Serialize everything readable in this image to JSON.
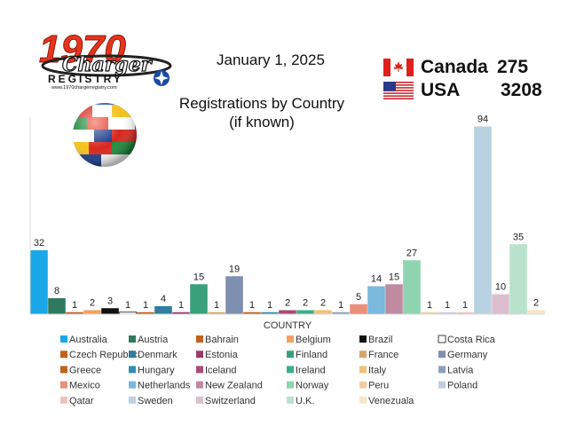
{
  "header": {
    "logo_main": "1970",
    "logo_script": "Charger",
    "logo_registry": "REGISTRY",
    "logo_url": "www.1970chargerregistry.com",
    "date": "January 1, 2025",
    "title_line1": "Registrations by Country",
    "title_line2": "(if known)"
  },
  "totals": [
    {
      "country": "Canada",
      "count": "275"
    },
    {
      "country": "USA",
      "count": "3208"
    }
  ],
  "chart_data": {
    "type": "bar",
    "title": "Registrations by Country (if known)",
    "xlabel": "COUNTRY",
    "ylabel": "",
    "ylim": [
      0,
      100
    ],
    "grid": false,
    "legend_position": "bottom",
    "categories": [
      "Australia",
      "Austria",
      "Bahrain",
      "Belgium",
      "Brazil",
      "Costa Rica",
      "Czech Republic",
      "Denmark",
      "Estonia",
      "Finland",
      "France",
      "Germany",
      "Greece",
      "Hungary",
      "Iceland",
      "Ireland",
      "Italy",
      "Latvia",
      "Mexico",
      "Netherlands",
      "New Zealand",
      "Norway",
      "Peru",
      "Poland",
      "Qatar",
      "Sweden",
      "Switzerland",
      "U.K.",
      "Venezuala"
    ],
    "values": [
      32,
      8,
      1,
      2,
      3,
      1,
      1,
      4,
      1,
      15,
      1,
      19,
      1,
      1,
      2,
      2,
      2,
      1,
      5,
      14,
      15,
      27,
      1,
      1,
      1,
      94,
      10,
      35,
      2
    ],
    "colors": [
      "#1aa7e8",
      "#2f7a5f",
      "#c0621c",
      "#f2a064",
      "#111111",
      "#ffffff",
      "#c0621c",
      "#2f7f9e",
      "#9c3a6a",
      "#3aa07a",
      "#d6a56a",
      "#7f8fb0",
      "#c0621c",
      "#2f8fb0",
      "#a84a78",
      "#3ab08a",
      "#f2c07a",
      "#8ea0bb",
      "#e8907a",
      "#7ab8dc",
      "#c08aa0",
      "#8fd4b0",
      "#f4cca0",
      "#c0cde0",
      "#f0c0c0",
      "#b8d2e2",
      "#dcbfcf",
      "#b8e2cc",
      "#f9e4c4"
    ]
  }
}
